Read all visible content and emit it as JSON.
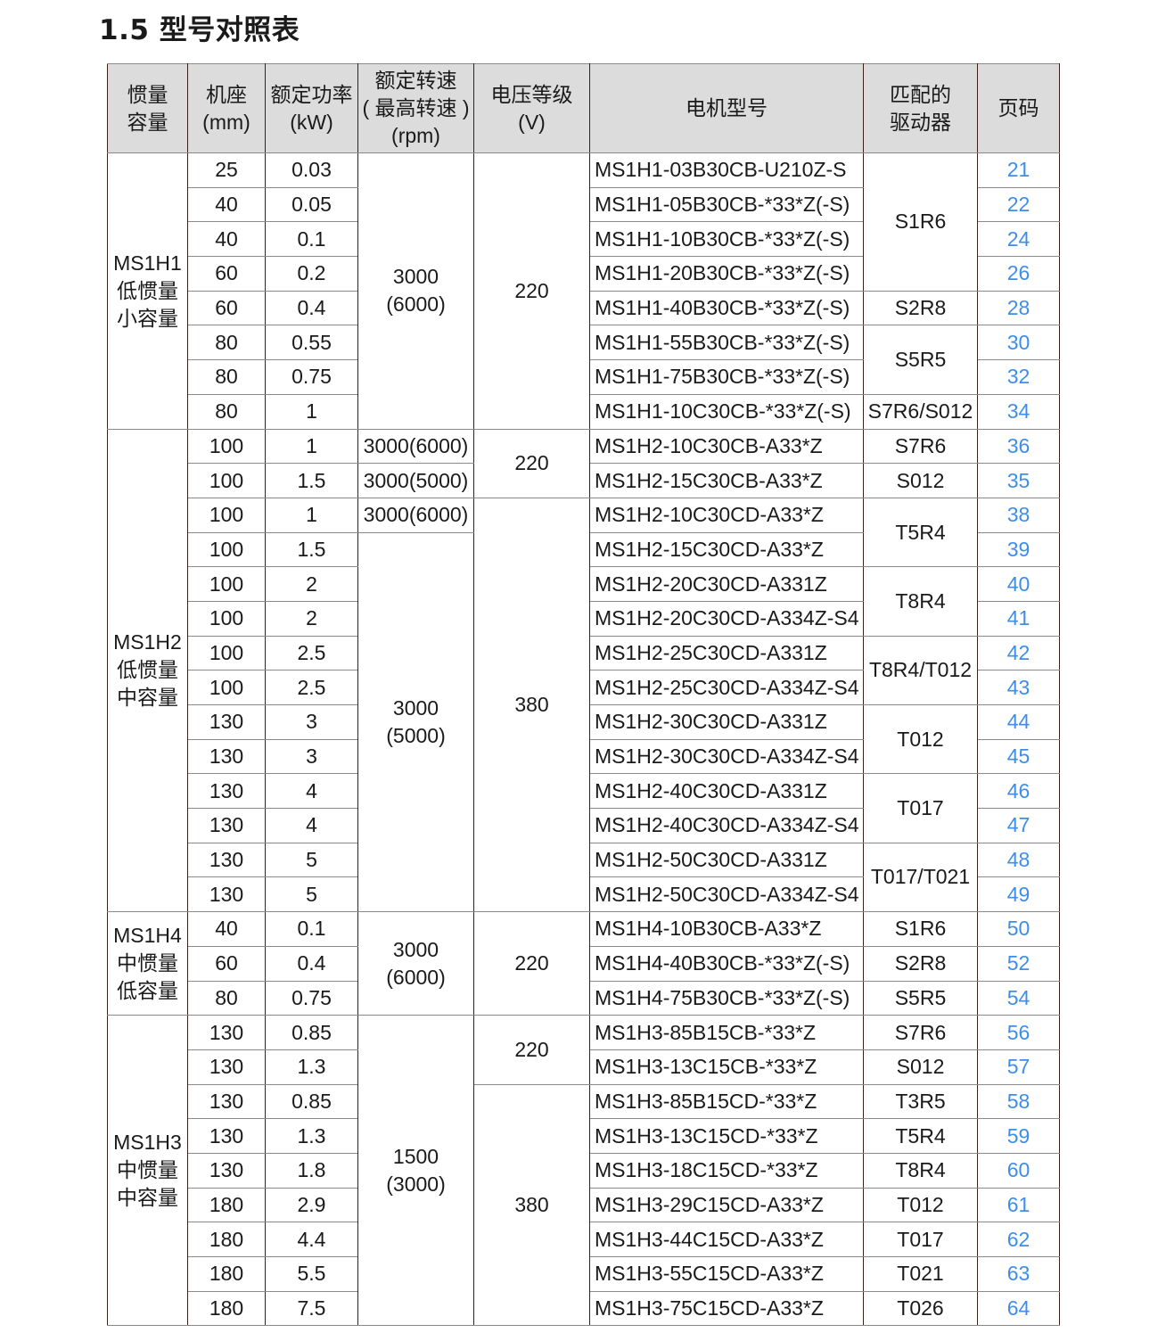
{
  "title": "1.5 型号对照表",
  "headers": [
    "惯量\n容量",
    "机座\n(mm)",
    "额定功率\n(kW)",
    "额定转速\n( 最高转速 )\n(rpm)",
    "电压等级\n(V)",
    "电机型号",
    "匹配的\n驱动器",
    "页码"
  ],
  "accent_color": "#3d8eea",
  "inertia_blocks": [
    {
      "value": "MS1H1\n低惯量\n小容量",
      "count": 8
    },
    {
      "value": "MS1H2\n低惯量\n中容量",
      "count": 14
    },
    {
      "value": "MS1H4\n中惯量\n低容量",
      "count": 3
    },
    {
      "value": "MS1H3\n中惯量\n中容量",
      "count": 9
    }
  ],
  "speed_blocks": [
    {
      "value": "3000\n(6000)",
      "count": 8
    },
    {
      "value": "3000(6000)",
      "count": 1
    },
    {
      "value": "3000(5000)",
      "count": 1
    },
    {
      "value": "3000(6000)",
      "count": 1
    },
    {
      "value": "3000\n(5000)",
      "count": 11
    },
    {
      "value": "3000\n(6000)",
      "count": 3
    },
    {
      "value": "1500\n(3000)",
      "count": 9
    }
  ],
  "voltage_blocks": [
    {
      "value": "220",
      "count": 8
    },
    {
      "value": "220",
      "count": 2
    },
    {
      "value": "380",
      "count": 12
    },
    {
      "value": "220",
      "count": 3
    },
    {
      "value": "220",
      "count": 2
    },
    {
      "value": "380",
      "count": 7
    }
  ],
  "driver_blocks": [
    {
      "value": "S1R6",
      "count": 4
    },
    {
      "value": "S2R8",
      "count": 1
    },
    {
      "value": "S5R5",
      "count": 2
    },
    {
      "value": "S7R6/S012",
      "count": 1
    },
    {
      "value": "S7R6",
      "count": 1
    },
    {
      "value": "S012",
      "count": 1
    },
    {
      "value": "T5R4",
      "count": 2
    },
    {
      "value": "T8R4",
      "count": 2
    },
    {
      "value": "T8R4/T012",
      "count": 2
    },
    {
      "value": "T012",
      "count": 2
    },
    {
      "value": "T017",
      "count": 2
    },
    {
      "value": "T017/T021",
      "count": 2
    },
    {
      "value": "S1R6",
      "count": 1
    },
    {
      "value": "S2R8",
      "count": 1
    },
    {
      "value": "S5R5",
      "count": 1
    },
    {
      "value": "S7R6",
      "count": 1
    },
    {
      "value": "S012",
      "count": 1
    },
    {
      "value": "T3R5",
      "count": 1
    },
    {
      "value": "T5R4",
      "count": 1
    },
    {
      "value": "T8R4",
      "count": 1
    },
    {
      "value": "T012",
      "count": 1
    },
    {
      "value": "T017",
      "count": 1
    },
    {
      "value": "T021",
      "count": 1
    },
    {
      "value": "T026",
      "count": 1
    }
  ],
  "rows": [
    {
      "frame": "25",
      "power": "0.03",
      "model": "MS1H1-03B30CB-U210Z-S",
      "page": "21"
    },
    {
      "frame": "40",
      "power": "0.05",
      "model": "MS1H1-05B30CB-*33*Z(-S)",
      "page": "22"
    },
    {
      "frame": "40",
      "power": "0.1",
      "model": "MS1H1-10B30CB-*33*Z(-S)",
      "page": "24"
    },
    {
      "frame": "60",
      "power": "0.2",
      "model": "MS1H1-20B30CB-*33*Z(-S)",
      "page": "26"
    },
    {
      "frame": "60",
      "power": "0.4",
      "model": "MS1H1-40B30CB-*33*Z(-S)",
      "page": "28"
    },
    {
      "frame": "80",
      "power": "0.55",
      "model": "MS1H1-55B30CB-*33*Z(-S)",
      "page": "30"
    },
    {
      "frame": "80",
      "power": "0.75",
      "model": "MS1H1-75B30CB-*33*Z(-S)",
      "page": "32"
    },
    {
      "frame": "80",
      "power": "1",
      "model": "MS1H1-10C30CB-*33*Z(-S)",
      "page": "34"
    },
    {
      "frame": "100",
      "power": "1",
      "model": "MS1H2-10C30CB-A33*Z",
      "page": "36"
    },
    {
      "frame": "100",
      "power": "1.5",
      "model": "MS1H2-15C30CB-A33*Z",
      "page": "35"
    },
    {
      "frame": "100",
      "power": "1",
      "model": "MS1H2-10C30CD-A33*Z",
      "page": "38"
    },
    {
      "frame": "100",
      "power": "1.5",
      "model": "MS1H2-15C30CD-A33*Z",
      "page": "39"
    },
    {
      "frame": "100",
      "power": "2",
      "model": "MS1H2-20C30CD-A331Z",
      "page": "40"
    },
    {
      "frame": "100",
      "power": "2",
      "model": "MS1H2-20C30CD-A334Z-S4",
      "page": "41"
    },
    {
      "frame": "100",
      "power": "2.5",
      "model": "MS1H2-25C30CD-A331Z",
      "page": "42"
    },
    {
      "frame": "100",
      "power": "2.5",
      "model": "MS1H2-25C30CD-A334Z-S4",
      "page": "43"
    },
    {
      "frame": "130",
      "power": "3",
      "model": "MS1H2-30C30CD-A331Z",
      "page": "44"
    },
    {
      "frame": "130",
      "power": "3",
      "model": "MS1H2-30C30CD-A334Z-S4",
      "page": "45"
    },
    {
      "frame": "130",
      "power": "4",
      "model": "MS1H2-40C30CD-A331Z",
      "page": "46"
    },
    {
      "frame": "130",
      "power": "4",
      "model": "MS1H2-40C30CD-A334Z-S4",
      "page": "47"
    },
    {
      "frame": "130",
      "power": "5",
      "model": "MS1H2-50C30CD-A331Z",
      "page": "48"
    },
    {
      "frame": "130",
      "power": "5",
      "model": "MS1H2-50C30CD-A334Z-S4",
      "page": "49"
    },
    {
      "frame": "40",
      "power": "0.1",
      "model": "MS1H4-10B30CB-A33*Z",
      "page": "50"
    },
    {
      "frame": "60",
      "power": "0.4",
      "model": "MS1H4-40B30CB-*33*Z(-S)",
      "page": "52"
    },
    {
      "frame": "80",
      "power": "0.75",
      "model": "MS1H4-75B30CB-*33*Z(-S)",
      "page": "54"
    },
    {
      "frame": "130",
      "power": "0.85",
      "model": "MS1H3-85B15CB-*33*Z",
      "page": "56"
    },
    {
      "frame": "130",
      "power": "1.3",
      "model": "MS1H3-13C15CB-*33*Z",
      "page": "57"
    },
    {
      "frame": "130",
      "power": "0.85",
      "model": "MS1H3-85B15CD-*33*Z",
      "page": "58"
    },
    {
      "frame": "130",
      "power": "1.3",
      "model": "MS1H3-13C15CD-*33*Z",
      "page": "59"
    },
    {
      "frame": "130",
      "power": "1.8",
      "model": "MS1H3-18C15CD-*33*Z",
      "page": "60"
    },
    {
      "frame": "180",
      "power": "2.9",
      "model": "MS1H3-29C15CD-A33*Z",
      "page": "61"
    },
    {
      "frame": "180",
      "power": "4.4",
      "model": "MS1H3-44C15CD-A33*Z",
      "page": "62"
    },
    {
      "frame": "180",
      "power": "5.5",
      "model": "MS1H3-55C15CD-A33*Z",
      "page": "63"
    },
    {
      "frame": "180",
      "power": "7.5",
      "model": "MS1H3-75C15CD-A33*Z",
      "page": "64"
    }
  ]
}
